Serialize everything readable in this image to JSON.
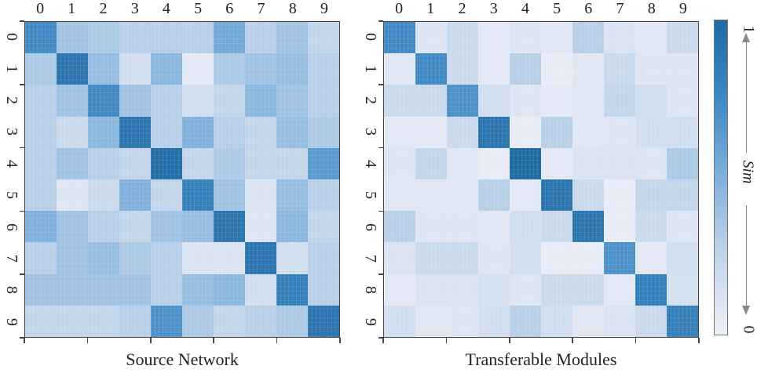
{
  "chart_data": [
    {
      "type": "heatmap",
      "title": "Source Network",
      "x_categories": [
        "0",
        "1",
        "2",
        "3",
        "4",
        "5",
        "6",
        "7",
        "8",
        "9"
      ],
      "y_categories": [
        "0",
        "1",
        "2",
        "3",
        "4",
        "5",
        "6",
        "7",
        "8",
        "9"
      ],
      "value_range": [
        0,
        1
      ],
      "colorbar_label": "Sim",
      "values": [
        [
          0.85,
          0.45,
          0.4,
          0.35,
          0.35,
          0.35,
          0.65,
          0.35,
          0.45,
          0.3
        ],
        [
          0.4,
          0.95,
          0.5,
          0.2,
          0.55,
          0.08,
          0.4,
          0.45,
          0.5,
          0.35
        ],
        [
          0.35,
          0.45,
          0.85,
          0.45,
          0.35,
          0.2,
          0.3,
          0.55,
          0.45,
          0.35
        ],
        [
          0.35,
          0.25,
          0.55,
          0.95,
          0.35,
          0.6,
          0.35,
          0.3,
          0.5,
          0.4
        ],
        [
          0.35,
          0.45,
          0.35,
          0.3,
          0.98,
          0.3,
          0.4,
          0.3,
          0.3,
          0.75
        ],
        [
          0.35,
          0.12,
          0.25,
          0.6,
          0.3,
          0.9,
          0.45,
          0.15,
          0.5,
          0.35
        ],
        [
          0.6,
          0.45,
          0.35,
          0.3,
          0.45,
          0.5,
          0.95,
          0.12,
          0.55,
          0.3
        ],
        [
          0.35,
          0.45,
          0.5,
          0.4,
          0.35,
          0.15,
          0.15,
          0.95,
          0.2,
          0.35
        ],
        [
          0.45,
          0.45,
          0.45,
          0.45,
          0.35,
          0.5,
          0.55,
          0.2,
          0.9,
          0.35
        ],
        [
          0.3,
          0.3,
          0.3,
          0.35,
          0.8,
          0.4,
          0.3,
          0.35,
          0.4,
          0.95
        ]
      ]
    },
    {
      "type": "heatmap",
      "title": "Transferable Modules",
      "x_categories": [
        "0",
        "1",
        "2",
        "3",
        "4",
        "5",
        "6",
        "7",
        "8",
        "9"
      ],
      "y_categories": [
        "0",
        "1",
        "2",
        "3",
        "4",
        "5",
        "6",
        "7",
        "8",
        "9"
      ],
      "value_range": [
        0,
        1
      ],
      "colorbar_label": "Sim",
      "values": [
        [
          0.85,
          0.12,
          0.25,
          0.08,
          0.12,
          0.1,
          0.35,
          0.15,
          0.1,
          0.25
        ],
        [
          0.1,
          0.85,
          0.25,
          0.08,
          0.35,
          0.05,
          0.1,
          0.25,
          0.12,
          0.12
        ],
        [
          0.25,
          0.25,
          0.8,
          0.2,
          0.12,
          0.08,
          0.1,
          0.3,
          0.2,
          0.12
        ],
        [
          0.08,
          0.08,
          0.25,
          0.95,
          0.05,
          0.35,
          0.1,
          0.12,
          0.2,
          0.2
        ],
        [
          0.12,
          0.3,
          0.1,
          0.05,
          1.0,
          0.08,
          0.15,
          0.15,
          0.12,
          0.4
        ],
        [
          0.1,
          0.1,
          0.1,
          0.35,
          0.08,
          0.95,
          0.25,
          0.05,
          0.3,
          0.3
        ],
        [
          0.35,
          0.12,
          0.12,
          0.1,
          0.2,
          0.25,
          0.95,
          0.05,
          0.25,
          0.12
        ],
        [
          0.15,
          0.25,
          0.25,
          0.12,
          0.2,
          0.05,
          0.05,
          0.8,
          0.08,
          0.2
        ],
        [
          0.08,
          0.15,
          0.15,
          0.18,
          0.12,
          0.25,
          0.25,
          0.08,
          0.9,
          0.18
        ],
        [
          0.2,
          0.1,
          0.12,
          0.2,
          0.35,
          0.2,
          0.1,
          0.15,
          0.25,
          0.9
        ]
      ]
    }
  ],
  "panels": [
    {
      "title": "Source Network"
    },
    {
      "title": "Transferable Modules"
    }
  ],
  "colorbar": {
    "label": "Sim",
    "max_label": "1",
    "min_label": "0",
    "color_low": "#eef0f8",
    "color_high": "#1f6aa5"
  },
  "tick_labels": [
    "0",
    "1",
    "2",
    "3",
    "4",
    "5",
    "6",
    "7",
    "8",
    "9"
  ]
}
